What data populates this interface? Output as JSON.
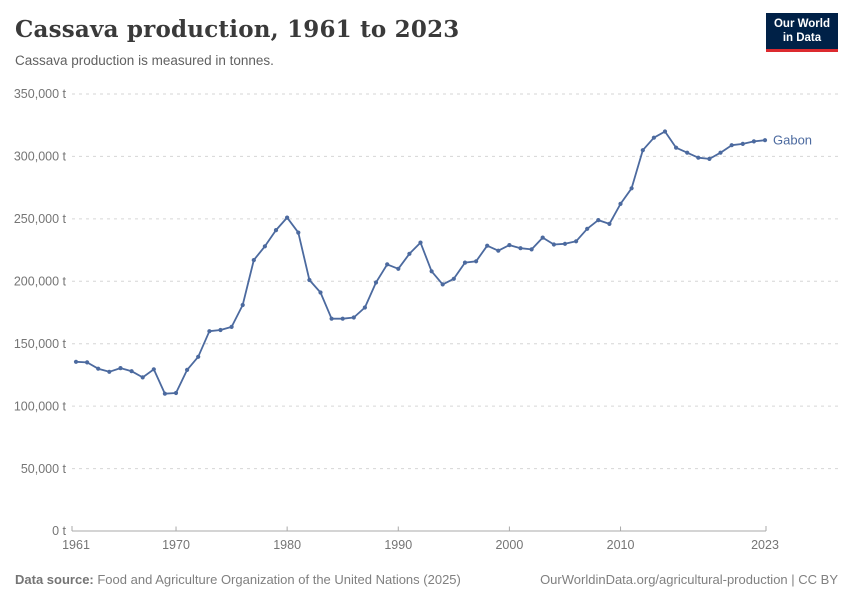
{
  "header": {
    "title": "Cassava production, 1961 to 2023",
    "subtitle": "Cassava production is measured in tonnes.",
    "logo_line1": "Our World",
    "logo_line2": "in Data"
  },
  "chart_data": {
    "type": "line",
    "title": "Cassava production, 1961 to 2023",
    "ylabel": "tonnes",
    "xlabel": "",
    "entity": "Gabon",
    "line_color": "#4C6A9F",
    "ylim": [
      0,
      350000
    ],
    "xlim": [
      1961,
      2023
    ],
    "grid": "dashed-horizontal",
    "legend_position": "end-of-line-label",
    "y_ticks": [
      {
        "value": 0,
        "label": "0 t"
      },
      {
        "value": 50000,
        "label": "50,000 t"
      },
      {
        "value": 100000,
        "label": "100,000 t"
      },
      {
        "value": 150000,
        "label": "150,000 t"
      },
      {
        "value": 200000,
        "label": "200,000 t"
      },
      {
        "value": 250000,
        "label": "250,000 t"
      },
      {
        "value": 300000,
        "label": "300,000 t"
      },
      {
        "value": 350000,
        "label": "350,000 t"
      }
    ],
    "x_ticks": [
      {
        "value": 1961,
        "label": "1961"
      },
      {
        "value": 1970,
        "label": "1970"
      },
      {
        "value": 1980,
        "label": "1980"
      },
      {
        "value": 1990,
        "label": "1990"
      },
      {
        "value": 2000,
        "label": "2000"
      },
      {
        "value": 2010,
        "label": "2010"
      },
      {
        "value": 2023,
        "label": "2023"
      }
    ],
    "x_tick_marks": [
      1970,
      1980,
      1990,
      2000,
      2010
    ],
    "series": [
      {
        "name": "Gabon",
        "years": [
          1961,
          1962,
          1963,
          1964,
          1965,
          1966,
          1967,
          1968,
          1969,
          1970,
          1971,
          1972,
          1973,
          1974,
          1975,
          1976,
          1977,
          1978,
          1979,
          1980,
          1981,
          1982,
          1983,
          1984,
          1985,
          1986,
          1987,
          1988,
          1989,
          1990,
          1991,
          1992,
          1993,
          1994,
          1995,
          1996,
          1997,
          1998,
          1999,
          2000,
          2001,
          2002,
          2003,
          2004,
          2005,
          2006,
          2007,
          2008,
          2009,
          2010,
          2011,
          2012,
          2013,
          2014,
          2015,
          2016,
          2017,
          2018,
          2019,
          2020,
          2021,
          2022,
          2023
        ],
        "values": [
          135500,
          135000,
          130000,
          127500,
          130500,
          128000,
          123000,
          129500,
          110000,
          110500,
          129000,
          139500,
          160000,
          161000,
          163500,
          181000,
          217000,
          228000,
          241000,
          251000,
          239000,
          201000,
          191000,
          170000,
          170000,
          171000,
          179000,
          199000,
          213500,
          210000,
          222000,
          231000,
          208000,
          197500,
          202000,
          215000,
          216000,
          228500,
          224500,
          229000,
          226500,
          225500,
          235000,
          229500,
          230000,
          232000,
          242000,
          249000,
          246000,
          262000,
          274500,
          305000,
          315000,
          320000,
          307000,
          303000,
          299000,
          298000,
          303000,
          309000,
          310000,
          312000,
          313000
        ]
      }
    ]
  },
  "footer": {
    "source_label": "Data source:",
    "source_text": " Food and Agriculture Organization of the United Nations (2025)",
    "right_text": "OurWorldinData.org/agricultural-production | CC BY"
  }
}
